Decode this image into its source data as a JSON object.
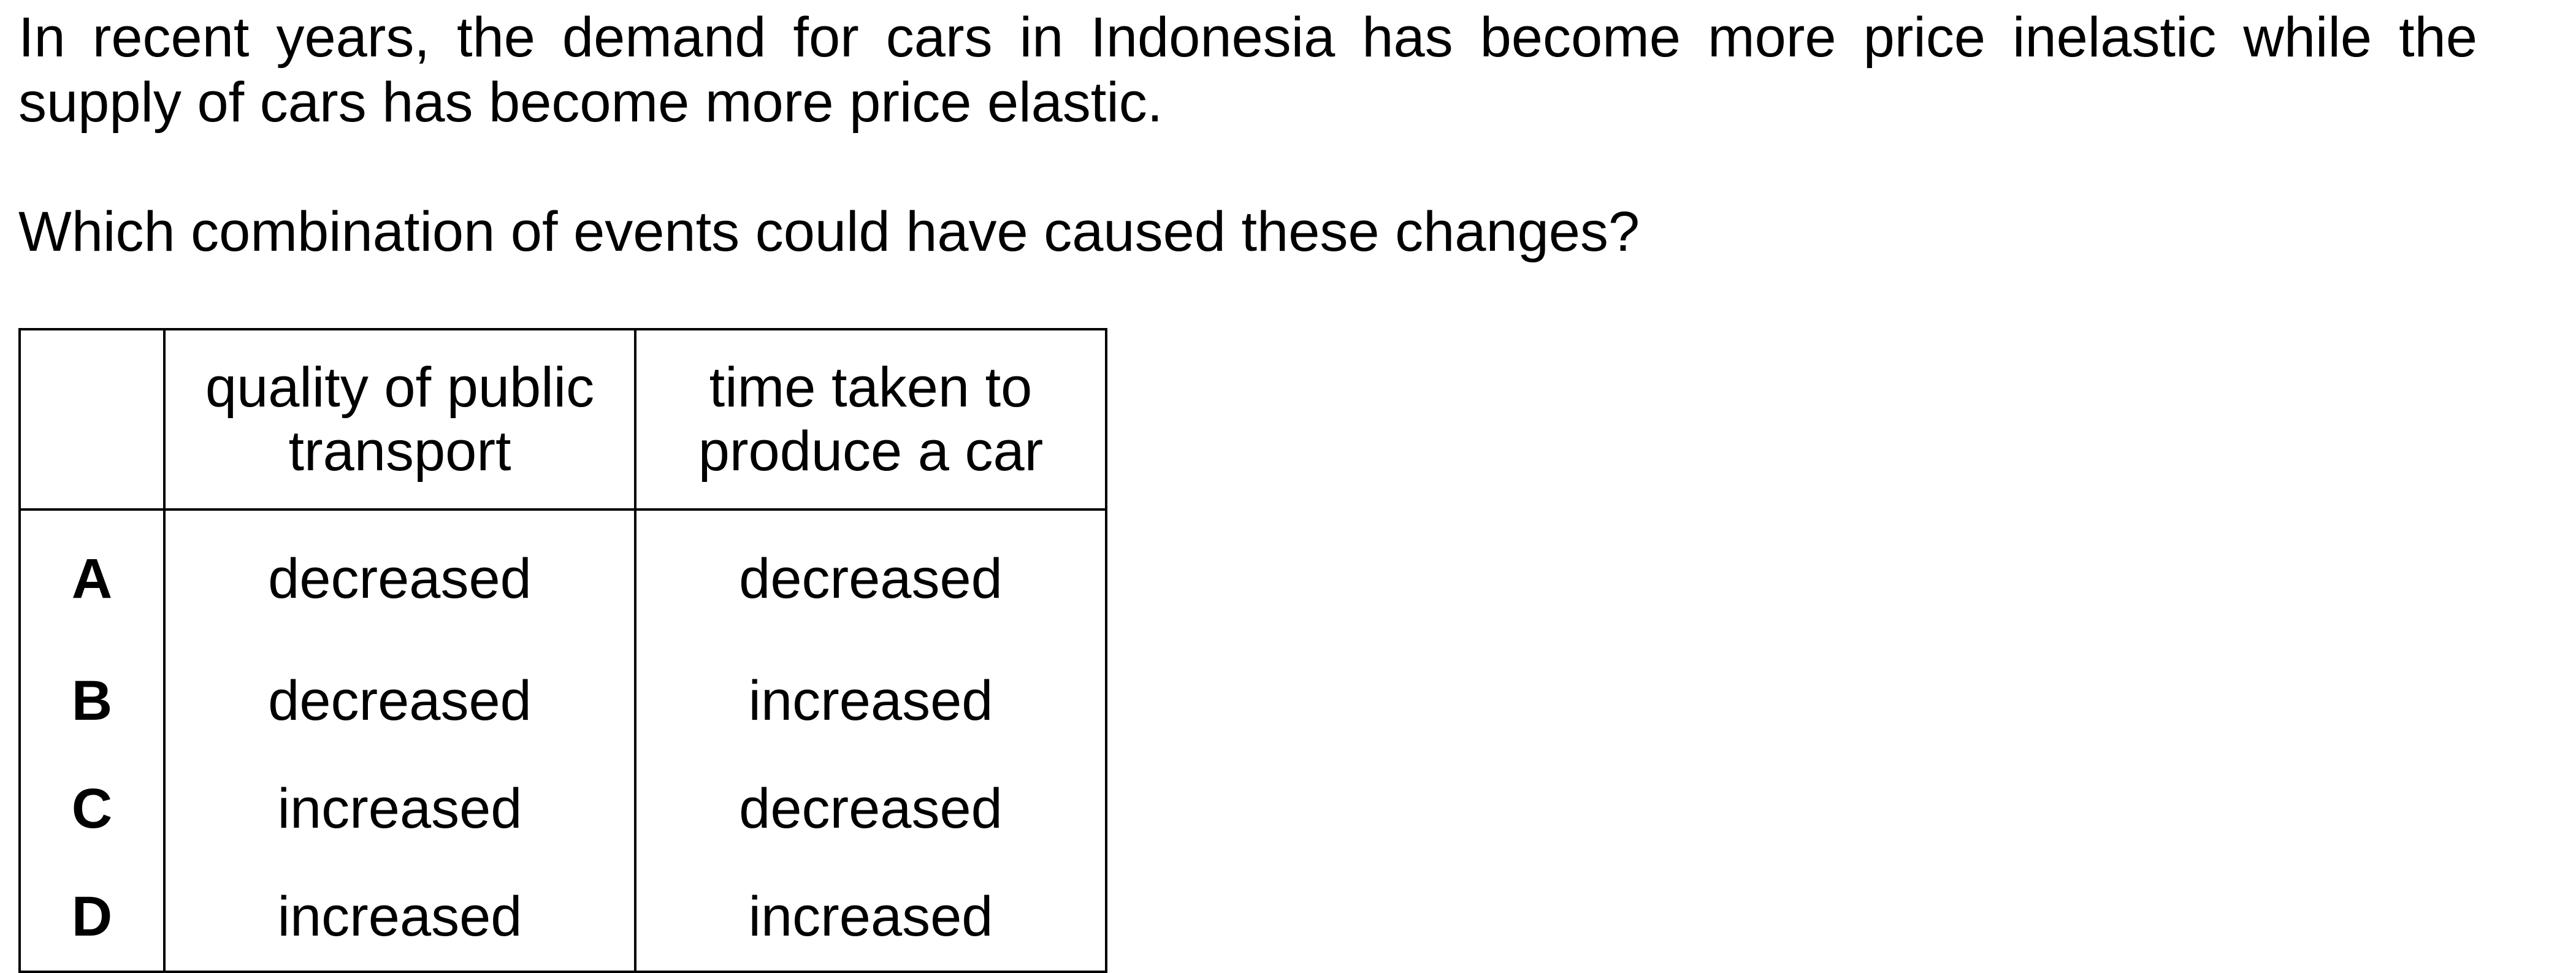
{
  "question": {
    "stem": "In recent years, the demand for cars in Indonesia has become more price inelastic while the supply of cars has become more price elastic.",
    "prompt": "Which combination of events could have caused these changes?"
  },
  "table": {
    "headers": [
      "",
      "quality of public transport",
      "time taken to produce a car"
    ],
    "rows": [
      {
        "letter": "A",
        "public_transport": "decreased",
        "production_time": "decreased"
      },
      {
        "letter": "B",
        "public_transport": "decreased",
        "production_time": "increased"
      },
      {
        "letter": "C",
        "public_transport": "increased",
        "production_time": "decreased"
      },
      {
        "letter": "D",
        "public_transport": "increased",
        "production_time": "increased"
      }
    ]
  }
}
